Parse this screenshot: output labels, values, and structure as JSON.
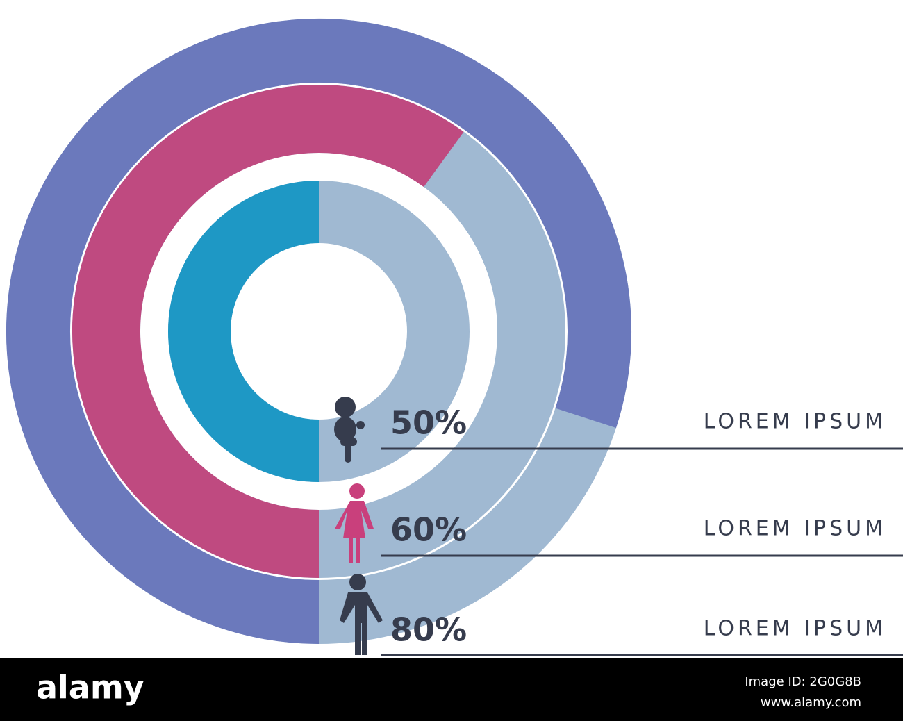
{
  "chart_data": {
    "type": "radial",
    "categories": [
      "LOREM IPSUM",
      "LOREM IPSUM",
      "LOREM IPSUM"
    ],
    "values": [
      50,
      60,
      80
    ],
    "value_labels": [
      "50%",
      "60%",
      "80%"
    ],
    "colors": [
      "#1e98c5",
      "#bf4a80",
      "#6b79bc"
    ],
    "track_color": "#a0b9d2"
  },
  "watermark": {
    "brand": "alamy",
    "image_id": "Image ID: 2G0G8B",
    "url": "www.alamy.com"
  }
}
